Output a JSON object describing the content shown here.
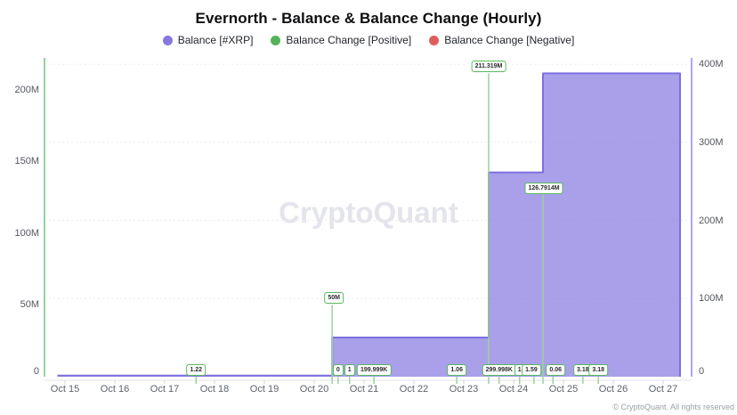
{
  "title": "Evernorth - Balance & Balance Change (Hourly)",
  "watermark": "CryptoQuant",
  "footer": "© CryptoQuant. All rights reserved",
  "legend": [
    {
      "id": "balance",
      "label": "Balance [#XRP]",
      "color": "#8678e0"
    },
    {
      "id": "change-positive",
      "label": "Balance Change [Positive]",
      "color": "#55b45a"
    },
    {
      "id": "change-negative",
      "label": "Balance Change [Negative]",
      "color": "#e05d5d"
    }
  ],
  "colors": {
    "area_fill": "rgba(133,120,224,0.70)",
    "area_stroke": "#7c6fe0",
    "left_axis_line": "#97d29a",
    "right_axis_line": "#b0a6f2",
    "event_line": "#98d49b",
    "gridline": "#ebebf1",
    "x_axis_line": "#e3e3e8",
    "x_tick": "#d5d5da"
  },
  "chart_data": {
    "type": "area",
    "title": "Evernorth - Balance & Balance Change (Hourly)",
    "x_axis": {
      "unit": "date (hourly)",
      "tick_labels": [
        "Oct 15",
        "Oct 16",
        "Oct 17",
        "Oct 18",
        "Oct 19",
        "Oct 20",
        "Oct 21",
        "Oct 22",
        "Oct 23",
        "Oct 24",
        "Oct 25",
        "Oct 26",
        "Oct 27"
      ],
      "tick_days": [
        15,
        16,
        17,
        18,
        19,
        20,
        21,
        22,
        23,
        24,
        25,
        26,
        27
      ]
    },
    "left_axis": {
      "series": "Balance Change",
      "ticks": [
        {
          "value_m": 0,
          "label": "0"
        },
        {
          "value_m": 50,
          "label": "50M"
        },
        {
          "value_m": 100,
          "label": "100M"
        },
        {
          "value_m": 150,
          "label": "150M"
        },
        {
          "value_m": 200,
          "label": "200M"
        }
      ],
      "range_m": [
        0,
        222
      ]
    },
    "right_axis": {
      "series": "Balance [#XRP]",
      "ticks": [
        {
          "value_m": 0,
          "label": "0"
        },
        {
          "value_m": 100,
          "label": "100M"
        },
        {
          "value_m": 200,
          "label": "200M"
        },
        {
          "value_m": 300,
          "label": "300M"
        },
        {
          "value_m": 400,
          "label": "400M"
        }
      ],
      "range_m": [
        0,
        408
      ],
      "grid": true
    },
    "series": [
      {
        "name": "Balance [#XRP]",
        "axis": "right",
        "type": "step-area",
        "points": [
          {
            "day": 14.85,
            "value_m": 3e-06
          },
          {
            "day": 20.36,
            "value_m": 50.2
          },
          {
            "day": 23.5,
            "value_m": 261.52
          },
          {
            "day": 24.59,
            "value_m": 388.31
          }
        ],
        "end_day": 27.34
      },
      {
        "name": "Balance Change [Positive]",
        "axis": "left",
        "type": "event-lines",
        "events": [
          {
            "day": 17.63,
            "value_m": 1.22e-06,
            "label": "1.22",
            "label_dx": 0
          },
          {
            "day": 20.36,
            "value_m": 50,
            "label": "50M",
            "label_dx": 2
          },
          {
            "day": 20.48,
            "value_m": 0,
            "label": "0",
            "label_dx": 0
          },
          {
            "day": 20.71,
            "value_m": 1e-06,
            "label": "1",
            "label_dx": 0
          },
          {
            "day": 21.2,
            "value_m": 0.199999,
            "label": "199.999K",
            "label_dx": 0
          },
          {
            "day": 22.86,
            "value_m": 1.06e-06,
            "label": "1.06",
            "label_dx": 0
          },
          {
            "day": 23.5,
            "value_m": 211.319,
            "label": "211.319M",
            "label_dx": 0
          },
          {
            "day": 23.71,
            "value_m": 0.299998,
            "label": "299.998K",
            "label_dx": 0
          },
          {
            "day": 24.12,
            "value_m": 1e-06,
            "label": "1",
            "label_dx": 0
          },
          {
            "day": 24.41,
            "value_m": 1.59e-06,
            "label": "1.59",
            "label_dx": -3
          },
          {
            "day": 24.59,
            "value_m": 126.7914,
            "label": "126.7914M",
            "label_dx": 1
          },
          {
            "day": 24.79,
            "value_m": 6e-08,
            "label": "0.06",
            "label_dx": 3
          },
          {
            "day": 25.39,
            "value_m": 3.18e-06,
            "label": "3.18",
            "label_dx": 0
          },
          {
            "day": 25.7,
            "value_m": 3.18e-06,
            "label": "3.18",
            "label_dx": 0
          }
        ]
      },
      {
        "name": "Balance Change [Negative]",
        "axis": "left",
        "type": "event-lines",
        "events": []
      }
    ]
  }
}
